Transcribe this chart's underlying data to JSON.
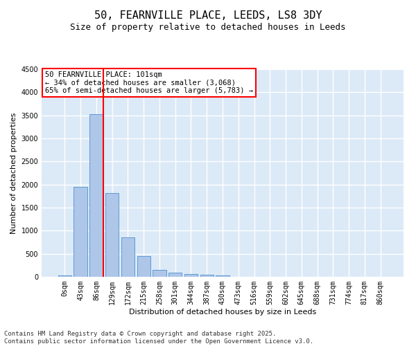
{
  "title_line1": "50, FEARNVILLE PLACE, LEEDS, LS8 3DY",
  "title_line2": "Size of property relative to detached houses in Leeds",
  "xlabel": "Distribution of detached houses by size in Leeds",
  "ylabel": "Number of detached properties",
  "categories": [
    "0sqm",
    "43sqm",
    "86sqm",
    "129sqm",
    "172sqm",
    "215sqm",
    "258sqm",
    "301sqm",
    "344sqm",
    "387sqm",
    "430sqm",
    "473sqm",
    "516sqm",
    "559sqm",
    "602sqm",
    "645sqm",
    "688sqm",
    "731sqm",
    "774sqm",
    "817sqm",
    "860sqm"
  ],
  "bar_values": [
    30,
    1950,
    3530,
    1810,
    850,
    455,
    155,
    95,
    55,
    50,
    30,
    0,
    0,
    0,
    0,
    0,
    0,
    0,
    0,
    0,
    0
  ],
  "bar_color": "#aec6e8",
  "bar_edge_color": "#5b9bd5",
  "background_color": "#dce9f7",
  "grid_color": "#ffffff",
  "ylim": [
    0,
    4500
  ],
  "yticks": [
    0,
    500,
    1000,
    1500,
    2000,
    2500,
    3000,
    3500,
    4000,
    4500
  ],
  "annotation_text": "50 FEARNVILLE PLACE: 101sqm\n← 34% of detached houses are smaller (3,068)\n65% of semi-detached houses are larger (5,783) →",
  "red_line_x": 2,
  "footer_line1": "Contains HM Land Registry data © Crown copyright and database right 2025.",
  "footer_line2": "Contains public sector information licensed under the Open Government Licence v3.0.",
  "title_fontsize": 11,
  "subtitle_fontsize": 9,
  "axis_label_fontsize": 8,
  "tick_fontsize": 7,
  "annotation_fontsize": 7.5,
  "footer_fontsize": 6.5
}
